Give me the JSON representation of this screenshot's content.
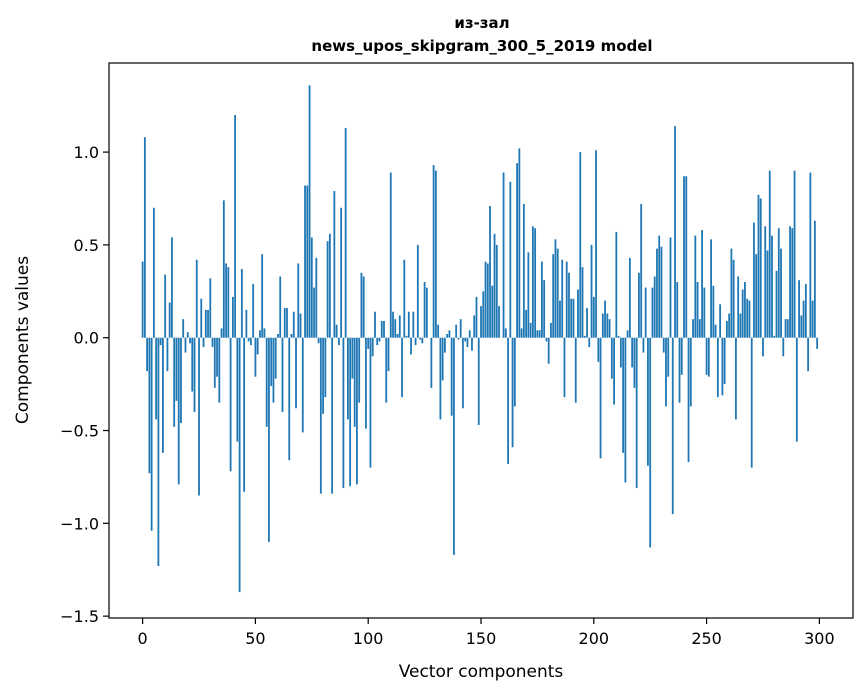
{
  "chart_data": {
    "type": "bar",
    "title_line1": "из-зал",
    "title_line2": "news_upos_skipgram_300_5_2019 model",
    "xlabel": "Vector components",
    "ylabel": "Components values",
    "xlim": [
      -14.9,
      314.9
    ],
    "ylim": [
      -1.51,
      1.48
    ],
    "xticks": [
      0,
      50,
      100,
      150,
      200,
      250,
      300
    ],
    "yticks": [
      -1.5,
      -1.0,
      -0.5,
      0.0,
      0.5,
      1.0
    ],
    "ytick_labels": [
      "−1.5",
      "−1.0",
      "−0.5",
      "0.0",
      "0.5",
      "1.0"
    ],
    "bar_color": "#1f77b4",
    "grid": false,
    "x": [
      0,
      1,
      2,
      3,
      4,
      5,
      6,
      7,
      8,
      9,
      10,
      11,
      12,
      13,
      14,
      15,
      16,
      17,
      18,
      19,
      20,
      21,
      22,
      23,
      24,
      25,
      26,
      27,
      28,
      29,
      30,
      31,
      32,
      33,
      34,
      35,
      36,
      37,
      38,
      39,
      40,
      41,
      42,
      43,
      44,
      45,
      46,
      47,
      48,
      49,
      50,
      51,
      52,
      53,
      54,
      55,
      56,
      57,
      58,
      59,
      60,
      61,
      62,
      63,
      64,
      65,
      66,
      67,
      68,
      69,
      70,
      71,
      72,
      73,
      74,
      75,
      76,
      77,
      78,
      79,
      80,
      81,
      82,
      83,
      84,
      85,
      86,
      87,
      88,
      89,
      90,
      91,
      92,
      93,
      94,
      95,
      96,
      97,
      98,
      99,
      100,
      101,
      102,
      103,
      104,
      105,
      106,
      107,
      108,
      109,
      110,
      111,
      112,
      113,
      114,
      115,
      116,
      117,
      118,
      119,
      120,
      121,
      122,
      123,
      124,
      125,
      126,
      127,
      128,
      129,
      130,
      131,
      132,
      133,
      134,
      135,
      136,
      137,
      138,
      139,
      140,
      141,
      142,
      143,
      144,
      145,
      146,
      147,
      148,
      149,
      150,
      151,
      152,
      153,
      154,
      155,
      156,
      157,
      158,
      159,
      160,
      161,
      162,
      163,
      164,
      165,
      166,
      167,
      168,
      169,
      170,
      171,
      172,
      173,
      174,
      175,
      176,
      177,
      178,
      179,
      180,
      181,
      182,
      183,
      184,
      185,
      186,
      187,
      188,
      189,
      190,
      191,
      192,
      193,
      194,
      195,
      196,
      197,
      198,
      199,
      200,
      201,
      202,
      203,
      204,
      205,
      206,
      207,
      208,
      209,
      210,
      211,
      212,
      213,
      214,
      215,
      216,
      217,
      218,
      219,
      220,
      221,
      222,
      223,
      224,
      225,
      226,
      227,
      228,
      229,
      230,
      231,
      232,
      233,
      234,
      235,
      236,
      237,
      238,
      239,
      240,
      241,
      242,
      243,
      244,
      245,
      246,
      247,
      248,
      249,
      250,
      251,
      252,
      253,
      254,
      255,
      256,
      257,
      258,
      259,
      260,
      261,
      262,
      263,
      264,
      265,
      266,
      267,
      268,
      269,
      270,
      271,
      272,
      273,
      274,
      275,
      276,
      277,
      278,
      279,
      280,
      281,
      282,
      283,
      284,
      285,
      286,
      287,
      288,
      289,
      290,
      291,
      292,
      293,
      294,
      295,
      296,
      297,
      298,
      299
    ],
    "values": [
      0.41,
      1.08,
      -0.18,
      -0.73,
      -1.04,
      0.7,
      -0.44,
      -1.23,
      -0.04,
      -0.62,
      0.34,
      -0.18,
      0.19,
      0.54,
      -0.48,
      -0.34,
      -0.79,
      -0.46,
      0.1,
      -0.08,
      0.03,
      -0.03,
      -0.29,
      -0.4,
      0.42,
      -0.85,
      0.21,
      -0.05,
      0.15,
      0.15,
      0.32,
      -0.05,
      -0.27,
      -0.21,
      -0.35,
      0.05,
      0.74,
      0.4,
      0.38,
      -0.72,
      0.22,
      1.2,
      -0.56,
      -1.37,
      0.37,
      -0.83,
      0.15,
      -0.02,
      -0.04,
      0.29,
      -0.21,
      -0.09,
      0.04,
      0.45,
      0.05,
      -0.48,
      -1.1,
      -0.26,
      -0.35,
      -0.22,
      0.02,
      0.33,
      -0.4,
      0.16,
      0.16,
      -0.66,
      0.02,
      0.14,
      -0.38,
      0.4,
      0.13,
      -0.51,
      0.82,
      0.82,
      1.36,
      0.54,
      0.27,
      0.43,
      -0.03,
      -0.84,
      -0.41,
      -0.32,
      0.52,
      0.56,
      -0.84,
      0.79,
      0.07,
      -0.04,
      0.7,
      -0.81,
      1.13,
      -0.44,
      -0.8,
      -0.22,
      -0.48,
      -0.79,
      -0.35,
      0.35,
      0.33,
      -0.49,
      -0.06,
      -0.7,
      -0.1,
      0.14,
      -0.04,
      -0.02,
      0.09,
      0.09,
      -0.35,
      -0.18,
      0.89,
      0.14,
      0.1,
      0.02,
      0.12,
      -0.32,
      0.42,
      0.01,
      0.14,
      -0.09,
      0.14,
      -0.04,
      0.5,
      -0.01,
      -0.03,
      0.3,
      0.27,
      0.0,
      -0.27,
      0.93,
      0.9,
      0.07,
      -0.44,
      -0.23,
      -0.08,
      0.02,
      0.04,
      -0.42,
      -1.17,
      0.07,
      -0.01,
      0.1,
      -0.38,
      -0.02,
      -0.05,
      0.04,
      -0.07,
      0.12,
      0.22,
      -0.47,
      0.17,
      0.25,
      0.41,
      0.4,
      0.71,
      0.28,
      0.56,
      0.5,
      0.17,
      0.0,
      0.89,
      0.05,
      -0.68,
      0.84,
      -0.59,
      -0.37,
      0.94,
      1.02,
      0.05,
      0.72,
      0.15,
      0.46,
      0.08,
      0.6,
      0.59,
      0.04,
      0.04,
      0.41,
      0.31,
      -0.02,
      -0.14,
      0.08,
      0.45,
      0.53,
      0.48,
      0.2,
      0.42,
      -0.32,
      0.41,
      0.35,
      0.21,
      0.21,
      -0.35,
      0.26,
      1.0,
      0.38,
      0.01,
      0.16,
      -0.05,
      0.5,
      0.22,
      1.01,
      -0.13,
      -0.65,
      0.13,
      0.2,
      0.13,
      0.1,
      -0.22,
      -0.36,
      0.57,
      0.01,
      -0.16,
      -0.62,
      -0.78,
      0.04,
      0.43,
      -0.16,
      -0.27,
      -0.81,
      0.35,
      0.72,
      -0.08,
      0.27,
      -0.69,
      -1.13,
      0.27,
      0.33,
      0.48,
      0.55,
      0.49,
      -0.08,
      -0.37,
      -0.21,
      0.54,
      -0.95,
      1.14,
      0.3,
      -0.35,
      -0.2,
      0.87,
      0.87,
      -0.67,
      -0.37,
      0.1,
      0.55,
      0.3,
      0.1,
      0.58,
      0.27,
      -0.2,
      -0.21,
      0.53,
      0.28,
      0.07,
      -0.32,
      0.18,
      -0.31,
      -0.25,
      0.09,
      0.13,
      0.48,
      0.42,
      -0.44,
      0.33,
      0.13,
      0.26,
      0.3,
      0.21,
      0.2,
      -0.7,
      0.62,
      0.45,
      0.77,
      0.75,
      -0.1,
      0.6,
      0.47,
      0.9,
      0.55,
      0.01,
      0.36,
      0.59,
      0.48,
      -0.1,
      0.1,
      0.1,
      0.6,
      0.59,
      0.9,
      -0.56,
      0.31,
      0.12,
      0.2,
      0.29,
      -0.18,
      0.89,
      0.2,
      0.63,
      -0.06
    ]
  }
}
